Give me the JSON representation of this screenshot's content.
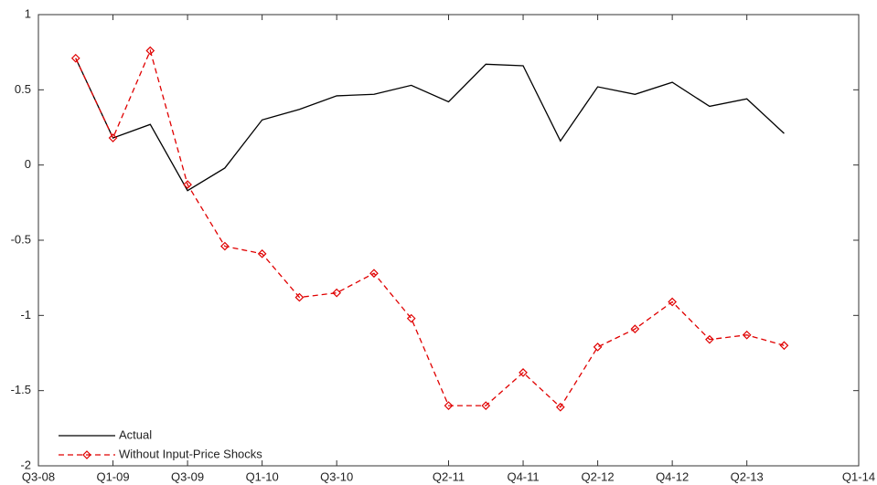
{
  "chart_data": {
    "type": "line",
    "x": [
      1,
      2,
      3,
      4,
      5,
      6,
      7,
      8,
      9,
      10,
      11,
      12,
      13,
      14,
      15,
      16,
      17,
      18,
      19,
      20
    ],
    "series": [
      {
        "name": "Actual",
        "color": "#000000",
        "dash": false,
        "marker": false,
        "values": [
          0.71,
          0.18,
          0.27,
          -0.17,
          -0.02,
          0.3,
          0.37,
          0.46,
          0.47,
          0.53,
          0.42,
          0.67,
          0.66,
          0.16,
          0.52,
          0.47,
          0.55,
          0.39,
          0.44,
          0.21
        ]
      },
      {
        "name": "Without Input-Price Shocks",
        "color": "#e00000",
        "dash": true,
        "marker": true,
        "values": [
          0.71,
          0.18,
          0.76,
          -0.13,
          -0.54,
          -0.59,
          -0.88,
          -0.85,
          -0.72,
          -1.02,
          -1.6,
          -1.6,
          -1.38,
          -1.61,
          -1.21,
          -1.09,
          -0.91,
          -1.16,
          -1.13,
          -1.2
        ]
      }
    ],
    "xlim": [
      0,
      22
    ],
    "xticks": [
      {
        "value": 0,
        "label": "Q3-08"
      },
      {
        "value": 2,
        "label": "Q1-09"
      },
      {
        "value": 4,
        "label": "Q3-09"
      },
      {
        "value": 6,
        "label": "Q1-10"
      },
      {
        "value": 8,
        "label": "Q3-10"
      },
      {
        "value": 11,
        "label": "Q2-11"
      },
      {
        "value": 13,
        "label": "Q4-11"
      },
      {
        "value": 15,
        "label": "Q2-12"
      },
      {
        "value": 17,
        "label": "Q4-12"
      },
      {
        "value": 19,
        "label": "Q2-13"
      },
      {
        "value": 22,
        "label": "Q1-14"
      }
    ],
    "ylim": [
      -2,
      1
    ],
    "yticks": [
      -2,
      -1.5,
      -1,
      -0.5,
      0,
      0.5,
      1
    ],
    "grid": false,
    "legend": "lower-left"
  }
}
